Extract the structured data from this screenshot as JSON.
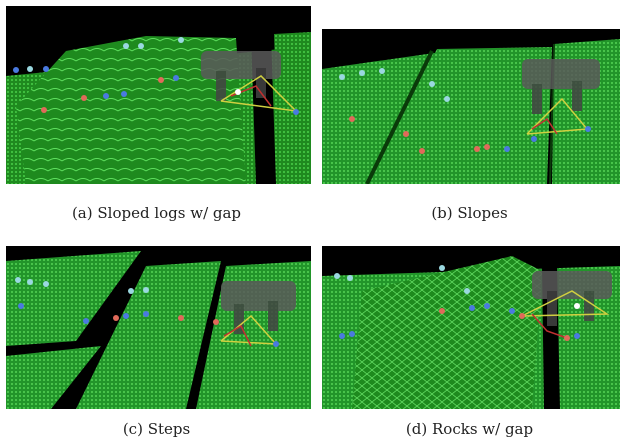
{
  "figure": {
    "subfigures": [
      {
        "label": "(a)",
        "caption": "Sloped logs w/ gap"
      },
      {
        "label": "(b)",
        "caption": "Slopes"
      },
      {
        "label": "(c)",
        "caption": "Steps"
      },
      {
        "label": "(d)",
        "caption": "Rocks w/ gap"
      }
    ],
    "colors": {
      "background": "#000000",
      "terrain": "#2ea82e",
      "terrain_light": "#45c945",
      "robot": "#5a5a5a",
      "foothold_red": "#e06a5a",
      "foothold_blue": "#4a7ae0",
      "foothold_cyan": "#9ad8e0"
    }
  }
}
